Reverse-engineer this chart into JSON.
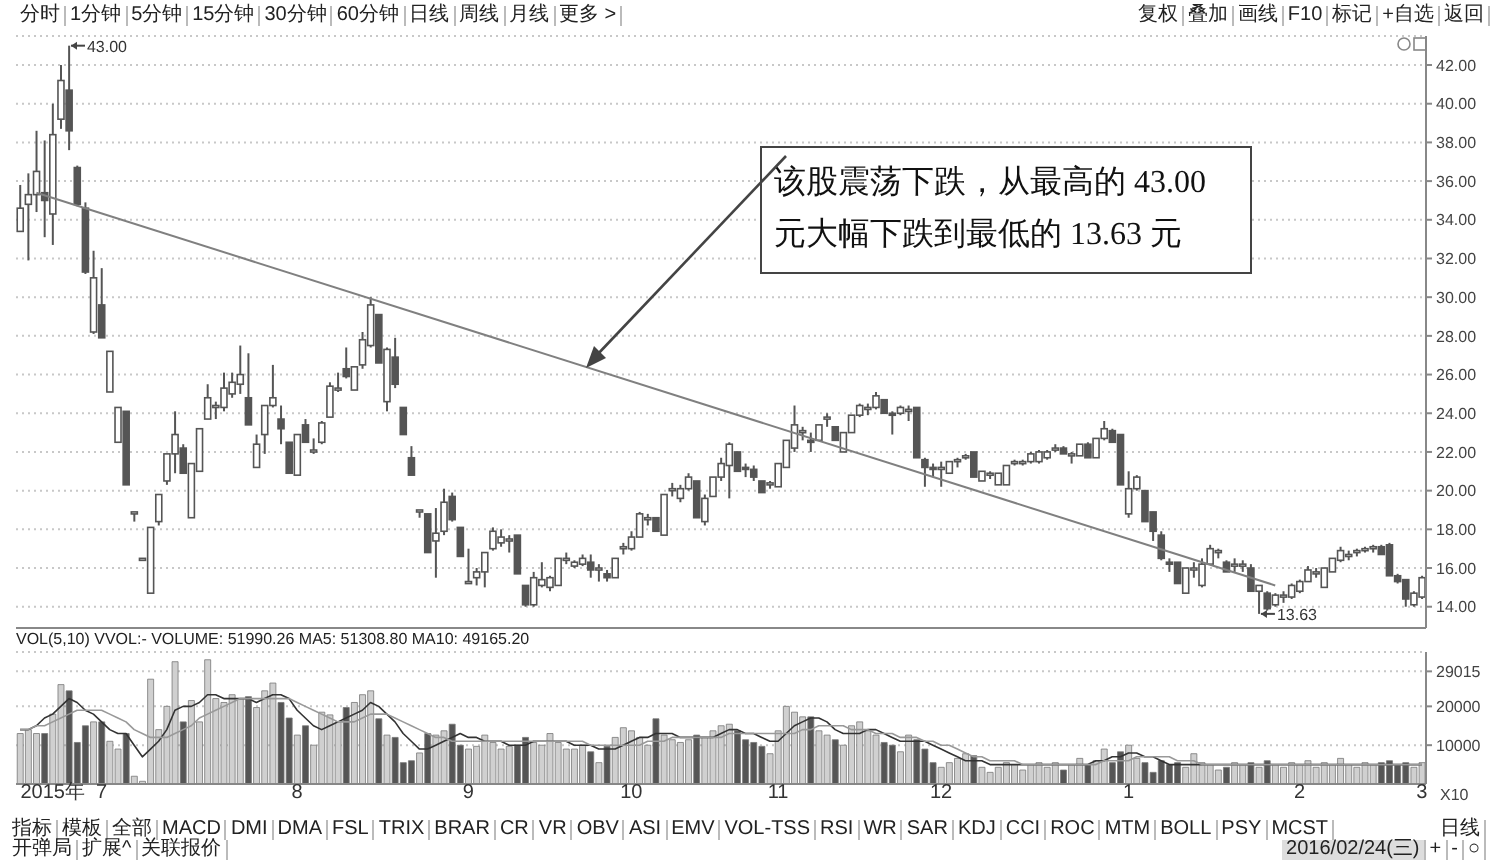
{
  "chart_data": [
    {
      "type": "other",
      "annotations": [
        "分时",
        "1分钟",
        "5分钟",
        "15分钟",
        "30分钟",
        "60分钟",
        "日线",
        "周线",
        "月线",
        "更多 >"
      ]
    },
    {
      "type": "other",
      "annotations": [
        "复权",
        "叠加",
        "画线",
        "F10",
        "标记",
        "+自选",
        "返回"
      ]
    },
    {
      "type": "candlestick",
      "color": "#555555",
      "ohlc": [
        [
          33.4,
          35.8,
          33.4,
          34.6
        ],
        [
          34.8,
          36.4,
          31.9,
          35.3
        ],
        [
          35.3,
          38.6,
          34.4,
          36.5
        ],
        [
          35.4,
          38.1,
          33.1,
          35.0
        ],
        [
          34.3,
          40.0,
          32.7,
          38.4
        ],
        [
          39.2,
          42.0,
          38.7,
          41.2
        ],
        [
          40.7,
          43.0,
          37.6,
          38.6
        ],
        [
          36.7,
          36.8,
          34.7,
          34.8
        ],
        [
          34.6,
          34.9,
          31.2,
          31.3
        ],
        [
          28.2,
          32.4,
          28.1,
          31.0
        ],
        [
          29.6,
          31.5,
          27.9,
          27.9
        ],
        [
          25.1,
          27.2,
          25.1,
          27.2
        ],
        [
          22.5,
          24.3,
          22.5,
          24.3
        ],
        [
          24.1,
          24.1,
          20.3,
          20.3
        ],
        [
          18.9,
          18.9,
          18.4,
          18.9
        ],
        [
          16.5,
          16.5,
          16.5,
          16.5
        ],
        [
          14.7,
          18.1,
          14.7,
          18.1
        ],
        [
          18.4,
          19.8,
          18.2,
          19.8
        ],
        [
          20.5,
          21.9,
          20.3,
          21.9
        ],
        [
          21.9,
          24.1,
          20.9,
          22.9
        ],
        [
          22.2,
          22.4,
          20.9,
          20.9
        ],
        [
          18.6,
          21.4,
          18.6,
          21.4
        ],
        [
          21.0,
          23.2,
          21.0,
          23.2
        ],
        [
          23.7,
          25.5,
          23.7,
          24.8
        ],
        [
          24.3,
          24.6,
          23.7,
          24.4
        ],
        [
          24.3,
          26.1,
          24.1,
          25.3
        ],
        [
          25.0,
          26.1,
          24.8,
          25.6
        ],
        [
          25.5,
          27.5,
          25.0,
          26.0
        ],
        [
          24.8,
          27.1,
          23.4,
          23.4
        ],
        [
          21.2,
          22.9,
          21.2,
          22.4
        ],
        [
          22.9,
          24.4,
          21.9,
          24.4
        ],
        [
          24.4,
          26.5,
          24.3,
          24.8
        ],
        [
          23.7,
          24.4,
          22.4,
          23.2
        ],
        [
          22.5,
          22.5,
          20.9,
          20.9
        ],
        [
          20.8,
          22.9,
          20.8,
          22.9
        ],
        [
          23.4,
          23.7,
          22.5,
          22.5
        ],
        [
          22.0,
          22.7,
          21.9,
          22.1
        ],
        [
          22.5,
          23.6,
          22.4,
          23.5
        ],
        [
          23.8,
          25.6,
          23.8,
          25.4
        ],
        [
          25.2,
          26.1,
          25.1,
          25.3
        ],
        [
          26.3,
          27.4,
          25.8,
          25.9
        ],
        [
          25.2,
          26.4,
          25.2,
          26.4
        ],
        [
          26.5,
          28.2,
          26.3,
          27.8
        ],
        [
          27.5,
          30.0,
          27.4,
          29.6
        ],
        [
          29.1,
          29.1,
          26.6,
          26.6
        ],
        [
          24.6,
          27.4,
          24.1,
          27.3
        ],
        [
          26.9,
          27.9,
          25.3,
          25.5
        ],
        [
          24.3,
          24.3,
          22.9,
          22.9
        ],
        [
          21.7,
          22.3,
          20.8,
          20.8
        ],
        [
          19.0,
          19.0,
          18.6,
          19.0
        ],
        [
          18.8,
          18.8,
          16.8,
          16.8
        ],
        [
          17.4,
          19.1,
          15.5,
          17.8
        ],
        [
          17.9,
          20.1,
          17.7,
          19.4
        ],
        [
          19.7,
          19.9,
          18.4,
          18.5
        ],
        [
          18.1,
          18.1,
          16.6,
          16.6
        ],
        [
          15.3,
          17.0,
          15.2,
          15.3
        ],
        [
          15.5,
          16.0,
          15.1,
          15.8
        ],
        [
          15.8,
          16.8,
          15.0,
          16.8
        ],
        [
          17.0,
          18.1,
          16.9,
          17.9
        ],
        [
          17.3,
          18.0,
          17.1,
          17.6
        ],
        [
          17.4,
          17.7,
          16.8,
          17.5
        ],
        [
          17.7,
          17.7,
          15.7,
          15.7
        ],
        [
          15.1,
          15.1,
          14.0,
          14.1
        ],
        [
          14.1,
          15.8,
          14.0,
          15.5
        ],
        [
          15.1,
          16.3,
          15.0,
          15.4
        ],
        [
          15.0,
          15.6,
          14.8,
          15.5
        ],
        [
          15.1,
          16.5,
          15.1,
          16.5
        ],
        [
          16.4,
          16.8,
          16.2,
          16.5
        ],
        [
          16.1,
          16.4,
          16.0,
          16.3
        ],
        [
          16.2,
          16.7,
          16.1,
          16.5
        ],
        [
          16.3,
          16.7,
          15.5,
          15.9
        ],
        [
          15.9,
          16.2,
          15.3,
          16.0
        ],
        [
          15.7,
          15.9,
          15.3,
          15.5
        ],
        [
          15.5,
          16.5,
          15.5,
          16.5
        ],
        [
          17.0,
          17.3,
          16.7,
          17.1
        ],
        [
          17.0,
          17.9,
          16.9,
          17.6
        ],
        [
          17.6,
          18.9,
          17.6,
          18.8
        ],
        [
          18.5,
          18.8,
          18.2,
          18.6
        ],
        [
          18.6,
          18.6,
          17.9,
          17.9
        ],
        [
          17.7,
          19.8,
          17.7,
          19.8
        ],
        [
          20.0,
          20.4,
          19.7,
          20.1
        ],
        [
          19.6,
          20.3,
          19.4,
          20.1
        ],
        [
          20.1,
          20.9,
          20.0,
          20.7
        ],
        [
          20.5,
          20.5,
          18.6,
          18.6
        ],
        [
          18.4,
          19.8,
          18.2,
          19.6
        ],
        [
          19.7,
          20.7,
          19.7,
          20.7
        ],
        [
          20.7,
          21.7,
          20.5,
          21.4
        ],
        [
          21.3,
          22.5,
          19.6,
          22.4
        ],
        [
          22.0,
          22.0,
          21.0,
          21.0
        ],
        [
          21.2,
          21.4,
          20.7,
          21.1
        ],
        [
          21.1,
          21.3,
          20.5,
          20.7
        ],
        [
          20.5,
          20.5,
          19.9,
          19.9
        ],
        [
          20.3,
          20.5,
          20.1,
          20.4
        ],
        [
          20.2,
          21.4,
          20.2,
          21.4
        ],
        [
          21.2,
          22.6,
          21.2,
          22.6
        ],
        [
          22.2,
          24.4,
          22.0,
          23.4
        ],
        [
          23.0,
          23.3,
          22.6,
          23.1
        ],
        [
          22.6,
          23.0,
          22.0,
          22.5
        ],
        [
          22.6,
          23.4,
          22.6,
          23.4
        ],
        [
          23.7,
          24.0,
          23.3,
          23.8
        ],
        [
          23.3,
          23.3,
          22.6,
          22.6
        ],
        [
          22.0,
          23.0,
          22.0,
          23.0
        ],
        [
          23.0,
          23.9,
          23.0,
          23.9
        ],
        [
          23.9,
          24.5,
          23.8,
          24.4
        ],
        [
          24.2,
          24.5,
          23.9,
          24.3
        ],
        [
          24.3,
          25.1,
          24.2,
          24.9
        ],
        [
          24.7,
          24.7,
          24.0,
          24.0
        ],
        [
          24.0,
          24.1,
          22.9,
          23.9
        ],
        [
          24.0,
          24.4,
          23.9,
          24.3
        ],
        [
          24.1,
          24.4,
          23.6,
          24.2
        ],
        [
          24.3,
          24.3,
          21.7,
          21.7
        ],
        [
          21.6,
          21.7,
          20.2,
          21.2
        ],
        [
          21.2,
          21.4,
          20.7,
          21.1
        ],
        [
          21.1,
          21.5,
          20.2,
          21.2
        ],
        [
          20.9,
          21.5,
          20.9,
          21.5
        ],
        [
          21.5,
          21.7,
          21.2,
          21.6
        ],
        [
          21.7,
          21.9,
          21.6,
          21.8
        ],
        [
          22.0,
          22.0,
          20.7,
          20.7
        ],
        [
          20.5,
          21.0,
          20.5,
          21.0
        ],
        [
          20.8,
          21.0,
          20.6,
          20.9
        ],
        [
          20.3,
          20.9,
          20.3,
          20.9
        ],
        [
          20.3,
          21.3,
          20.3,
          21.3
        ],
        [
          21.4,
          21.6,
          21.3,
          21.5
        ],
        [
          21.4,
          21.6,
          21.3,
          21.5
        ],
        [
          21.5,
          22.0,
          21.4,
          21.9
        ],
        [
          21.5,
          22.1,
          21.4,
          22.0
        ],
        [
          21.7,
          22.1,
          21.6,
          22.0
        ],
        [
          22.1,
          22.4,
          22.0,
          22.2
        ],
        [
          22.2,
          22.3,
          21.9,
          21.9
        ],
        [
          21.8,
          22.0,
          21.4,
          21.9
        ],
        [
          21.8,
          22.4,
          21.8,
          22.4
        ],
        [
          22.4,
          22.5,
          21.7,
          21.7
        ],
        [
          21.7,
          22.7,
          21.7,
          22.7
        ],
        [
          22.7,
          23.6,
          22.6,
          23.2
        ],
        [
          23.1,
          23.2,
          22.5,
          22.5
        ],
        [
          22.9,
          22.9,
          20.3,
          20.3
        ],
        [
          18.8,
          21.0,
          18.6,
          20.1
        ],
        [
          20.1,
          20.8,
          20.0,
          20.7
        ],
        [
          20.0,
          20.0,
          18.4,
          18.4
        ],
        [
          18.9,
          18.9,
          17.4,
          17.9
        ],
        [
          17.7,
          17.9,
          16.4,
          16.5
        ],
        [
          16.3,
          16.5,
          15.8,
          16.2
        ],
        [
          16.3,
          16.3,
          15.2,
          15.2
        ],
        [
          14.7,
          16.0,
          14.7,
          16.0
        ],
        [
          15.9,
          16.3,
          15.5,
          16.0
        ],
        [
          15.1,
          16.5,
          15.0,
          16.2
        ],
        [
          16.2,
          17.2,
          16.2,
          17.0
        ],
        [
          16.8,
          17.0,
          16.5,
          16.9
        ],
        [
          16.3,
          16.4,
          15.8,
          15.8
        ],
        [
          16.1,
          16.5,
          15.8,
          16.2
        ],
        [
          16.1,
          16.4,
          15.8,
          16.2
        ],
        [
          16.0,
          16.2,
          14.8,
          14.8
        ],
        [
          14.8,
          15.1,
          13.63,
          15.1
        ],
        [
          14.7,
          14.8,
          13.8,
          13.9
        ],
        [
          14.1,
          14.7,
          14.0,
          14.6
        ],
        [
          14.5,
          14.8,
          14.2,
          14.6
        ],
        [
          14.5,
          15.2,
          14.4,
          15.1
        ],
        [
          14.8,
          15.4,
          14.7,
          15.3
        ],
        [
          15.3,
          16.1,
          15.3,
          15.9
        ],
        [
          15.7,
          16.0,
          15.5,
          15.8
        ],
        [
          15.0,
          16.0,
          15.0,
          16.0
        ],
        [
          15.8,
          16.5,
          15.8,
          16.5
        ],
        [
          16.4,
          17.1,
          16.3,
          16.9
        ],
        [
          16.6,
          16.9,
          16.4,
          16.7
        ],
        [
          16.8,
          17.0,
          16.6,
          16.9
        ],
        [
          16.9,
          17.1,
          16.8,
          17.0
        ],
        [
          17.0,
          17.2,
          16.8,
          17.1
        ],
        [
          17.1,
          17.2,
          16.7,
          16.7
        ],
        [
          17.2,
          17.3,
          15.6,
          15.6
        ],
        [
          15.6,
          15.7,
          15.2,
          15.3
        ],
        [
          15.4,
          15.4,
          14.0,
          14.4
        ],
        [
          14.1,
          14.8,
          14.0,
          14.7
        ],
        [
          14.5,
          15.6,
          14.4,
          15.5
        ]
      ],
      "colors": [
        "#ffffff",
        "#ffffff",
        "#ffffff",
        "#555555",
        "#ffffff",
        "#ffffff",
        "#555555",
        "#555555",
        "#555555",
        "#ffffff",
        "#555555",
        "#ffffff",
        "#ffffff",
        "#555555",
        "#ffffff",
        "#ffffff",
        "#ffffff",
        "#ffffff",
        "#ffffff",
        "#ffffff",
        "#555555",
        "#ffffff",
        "#ffffff",
        "#ffffff",
        "#ffffff",
        "#ffffff",
        "#ffffff",
        "#ffffff",
        "#555555",
        "#ffffff",
        "#ffffff",
        "#ffffff",
        "#555555",
        "#555555",
        "#ffffff",
        "#555555",
        "#ffffff",
        "#ffffff",
        "#ffffff",
        "#ffffff",
        "#555555",
        "#ffffff",
        "#ffffff",
        "#ffffff",
        "#555555",
        "#ffffff",
        "#555555",
        "#555555",
        "#555555",
        "#ffffff",
        "#555555",
        "#ffffff",
        "#ffffff",
        "#555555",
        "#555555",
        "#ffffff",
        "#ffffff",
        "#ffffff",
        "#ffffff",
        "#ffffff",
        "#ffffff",
        "#555555",
        "#555555",
        "#ffffff",
        "#ffffff",
        "#ffffff",
        "#ffffff",
        "#ffffff",
        "#ffffff",
        "#ffffff",
        "#555555",
        "#ffffff",
        "#555555",
        "#ffffff",
        "#ffffff",
        "#ffffff",
        "#ffffff",
        "#ffffff",
        "#555555",
        "#ffffff",
        "#ffffff",
        "#ffffff",
        "#ffffff",
        "#555555",
        "#ffffff",
        "#ffffff",
        "#ffffff",
        "#ffffff",
        "#555555",
        "#555555",
        "#555555",
        "#555555",
        "#ffffff",
        "#ffffff",
        "#ffffff",
        "#ffffff",
        "#ffffff",
        "#555555",
        "#ffffff",
        "#ffffff",
        "#555555",
        "#ffffff",
        "#ffffff",
        "#ffffff",
        "#ffffff",
        "#ffffff",
        "#555555",
        "#555555",
        "#ffffff",
        "#ffffff",
        "#555555",
        "#555555",
        "#555555",
        "#ffffff",
        "#ffffff",
        "#ffffff",
        "#ffffff",
        "#555555",
        "#ffffff",
        "#ffffff",
        "#ffffff",
        "#ffffff",
        "#ffffff",
        "#ffffff",
        "#ffffff",
        "#ffffff",
        "#ffffff",
        "#ffffff",
        "#555555",
        "#ffffff",
        "#ffffff",
        "#555555",
        "#ffffff",
        "#ffffff",
        "#555555",
        "#555555",
        "#ffffff",
        "#ffffff",
        "#555555",
        "#555555",
        "#555555",
        "#555555",
        "#555555",
        "#ffffff",
        "#ffffff",
        "#ffffff",
        "#ffffff",
        "#ffffff",
        "#555555",
        "#ffffff",
        "#ffffff",
        "#555555",
        "#ffffff",
        "#555555",
        "#ffffff",
        "#ffffff",
        "#ffffff",
        "#ffffff",
        "#ffffff",
        "#ffffff",
        "#ffffff",
        "#ffffff",
        "#ffffff",
        "#ffffff",
        "#ffffff",
        "#ffffff",
        "#ffffff",
        "#555555",
        "#555555",
        "#555555",
        "#555555",
        "#ffffff",
        "#ffffff"
      ],
      "series": [
        {
          "type": "line",
          "color": "#808080",
          "values": [
            null,
            null,
            35.4,
            null,
            null,
            null,
            null,
            null,
            null,
            null,
            null,
            null,
            null,
            null,
            null,
            null,
            null,
            null,
            null,
            null,
            null,
            null,
            null,
            null,
            null,
            null,
            null,
            null,
            null,
            null,
            null,
            null,
            null,
            null,
            null,
            null,
            null,
            null,
            null,
            null,
            null,
            null,
            null,
            null,
            null,
            null,
            null,
            null,
            null,
            null,
            null,
            null,
            null,
            null,
            null,
            null,
            null,
            null,
            null,
            null,
            null,
            null,
            null,
            null,
            null,
            null,
            null,
            null,
            null,
            null,
            null,
            null,
            null,
            null,
            null,
            null,
            null,
            null,
            null,
            null,
            null,
            null,
            null,
            null,
            null,
            null,
            null,
            null,
            null,
            null,
            null,
            null,
            null,
            null,
            null,
            null,
            null,
            null,
            null,
            null,
            null,
            null,
            null,
            null,
            null,
            null,
            null,
            null,
            null,
            null,
            null,
            null,
            null,
            null,
            null,
            null,
            null,
            null,
            null,
            null,
            null,
            null,
            null,
            null,
            null,
            null,
            null,
            null,
            null,
            null,
            null,
            null,
            null,
            null,
            null,
            null,
            null,
            null,
            null,
            null,
            null,
            null,
            null,
            null,
            null,
            null,
            null,
            null,
            null,
            null,
            null,
            null,
            null,
            null,
            15.1,
            null,
            null,
            null,
            null,
            null,
            null,
            null,
            null,
            null,
            null,
            null,
            null,
            null,
            null,
            null,
            null,
            null,
            null
          ]
        }
      ],
      "ylim": [
        12.9,
        43.5
      ],
      "yticks": [
        {
          "value": 14,
          "label": "14.00"
        },
        {
          "value": 16,
          "label": "16.00"
        },
        {
          "value": 18,
          "label": "18.00"
        },
        {
          "value": 20,
          "label": "20.00"
        },
        {
          "value": 22,
          "label": "22.00"
        },
        {
          "value": 24,
          "label": "24.00"
        },
        {
          "value": 26,
          "label": "26.00"
        },
        {
          "value": 28,
          "label": "28.00"
        },
        {
          "value": 30,
          "label": "30.00"
        },
        {
          "value": 32,
          "label": "32.00"
        },
        {
          "value": 34,
          "label": "34.00"
        },
        {
          "value": 36,
          "label": "36.00"
        },
        {
          "value": 38,
          "label": "38.00"
        },
        {
          "value": 40,
          "label": "40.00"
        },
        {
          "value": 42,
          "label": "42.00"
        }
      ],
      "grid": "y",
      "tick_labels": "y",
      "annotations": [
        "该股震荡下跌，从最高的 43.00 元大幅下跌到最低的 13.63 元",
        "43.00",
        "13.63"
      ]
    },
    {
      "type": "bar",
      "title": "VOL(5,10) VVOL:- VOLUME: 51990.26 MA5: 51308.80 MA10: 49165.20",
      "ylabel": "X10",
      "categories": [
        null,
        null,
        null,
        null,
        "2015年",
        null,
        null,
        null,
        null,
        null,
        "7",
        null,
        null,
        null,
        null,
        null,
        null,
        null,
        null,
        null,
        null,
        null,
        null,
        null,
        null,
        null,
        null,
        null,
        null,
        null,
        null,
        null,
        null,
        null,
        "8",
        null,
        null,
        null,
        null,
        null,
        null,
        null,
        null,
        null,
        null,
        null,
        null,
        null,
        null,
        null,
        null,
        null,
        null,
        null,
        null,
        "9",
        null,
        null,
        null,
        null,
        null,
        null,
        null,
        null,
        null,
        null,
        null,
        null,
        null,
        null,
        null,
        null,
        null,
        null,
        null,
        "10",
        null,
        null,
        null,
        null,
        null,
        null,
        null,
        null,
        null,
        null,
        null,
        null,
        null,
        null,
        null,
        null,
        null,
        "11",
        null,
        null,
        null,
        null,
        null,
        null,
        null,
        null,
        null,
        null,
        null,
        null,
        null,
        null,
        null,
        null,
        null,
        null,
        null,
        "12",
        null,
        null,
        null,
        null,
        null,
        null,
        null,
        null,
        null,
        null,
        null,
        null,
        null,
        null,
        null,
        null,
        null,
        null,
        null,
        null,
        null,
        null,
        "1",
        null,
        null,
        null,
        null,
        null,
        null,
        null,
        null,
        null,
        null,
        null,
        null,
        null,
        null,
        null,
        null,
        null,
        null,
        null,
        null,
        "2",
        null,
        null,
        null,
        null,
        null,
        null,
        null,
        null,
        null,
        null,
        null,
        null,
        null,
        null,
        "3"
      ],
      "values": [
        13000,
        14000,
        13000,
        13000,
        18000,
        25600,
        24000,
        10700,
        15000,
        16000,
        16000,
        11000,
        9000,
        13000,
        2000,
        700,
        27000,
        14000,
        20000,
        31500,
        16000,
        21500,
        16000,
        32000,
        22000,
        21000,
        23000,
        22000,
        22500,
        19700,
        24000,
        26000,
        21000,
        17000,
        12600,
        15000,
        10000,
        18500,
        17800,
        16000,
        19700,
        21000,
        23000,
        24000,
        16800,
        12600,
        12000,
        5500,
        6000,
        8000,
        13000,
        12600,
        13700,
        15400,
        10000,
        9000,
        9700,
        12600,
        10700,
        9000,
        9700,
        10000,
        12000,
        10700,
        10000,
        13000,
        10700,
        9000,
        9000,
        10000,
        8300,
        5500,
        9700,
        12000,
        14500,
        13700,
        12000,
        10000,
        16800,
        12600,
        11400,
        10700,
        11400,
        12600,
        12000,
        13700,
        15000,
        15400,
        13700,
        11400,
        10700,
        9700,
        7800,
        13700,
        20000,
        18500,
        17300,
        17300,
        13700,
        12600,
        11400,
        10000,
        15000,
        16000,
        13700,
        12600,
        10700,
        10000,
        8300,
        12600,
        11400,
        9000,
        5500,
        4300,
        5500,
        6600,
        7800,
        7300,
        4300,
        3000,
        4300,
        5500,
        5000,
        3600,
        5000,
        5500,
        4300,
        5500,
        3600,
        5000,
        6600,
        5000,
        6000,
        9000,
        5500,
        8300,
        10000,
        6600,
        5500,
        3000,
        6000,
        5000,
        5500,
        4300,
        7800,
        5500,
        5000,
        3600,
        4300,
        5500,
        5000,
        5500,
        4300,
        6000,
        5000,
        4300,
        5500,
        5000,
        6000,
        4300,
        5500,
        5000,
        6600,
        5000,
        4300,
        5500,
        5000,
        5500,
        6000,
        5000,
        5500,
        4300,
        5500
      ],
      "colors": [
        "#d0d0d0",
        "#d0d0d0",
        "#d0d0d0",
        "#555555",
        "#d0d0d0",
        "#d0d0d0",
        "#555555",
        "#555555",
        "#555555",
        "#d0d0d0",
        "#555555",
        "#d0d0d0",
        "#d0d0d0",
        "#555555",
        "#d0d0d0",
        "#d0d0d0",
        "#d0d0d0",
        "#d0d0d0",
        "#d0d0d0",
        "#d0d0d0",
        "#555555",
        "#d0d0d0",
        "#d0d0d0",
        "#d0d0d0",
        "#d0d0d0",
        "#d0d0d0",
        "#d0d0d0",
        "#d0d0d0",
        "#555555",
        "#d0d0d0",
        "#d0d0d0",
        "#d0d0d0",
        "#555555",
        "#555555",
        "#d0d0d0",
        "#555555",
        "#d0d0d0",
        "#d0d0d0",
        "#d0d0d0",
        "#d0d0d0",
        "#555555",
        "#d0d0d0",
        "#d0d0d0",
        "#d0d0d0",
        "#555555",
        "#d0d0d0",
        "#555555",
        "#555555",
        "#555555",
        "#d0d0d0",
        "#555555",
        "#d0d0d0",
        "#d0d0d0",
        "#555555",
        "#555555",
        "#d0d0d0",
        "#d0d0d0",
        "#d0d0d0",
        "#d0d0d0",
        "#d0d0d0",
        "#d0d0d0",
        "#555555",
        "#555555",
        "#d0d0d0",
        "#d0d0d0",
        "#d0d0d0",
        "#d0d0d0",
        "#d0d0d0",
        "#d0d0d0",
        "#d0d0d0",
        "#555555",
        "#d0d0d0",
        "#555555",
        "#d0d0d0",
        "#d0d0d0",
        "#d0d0d0",
        "#d0d0d0",
        "#d0d0d0",
        "#555555",
        "#d0d0d0",
        "#d0d0d0",
        "#d0d0d0",
        "#d0d0d0",
        "#555555",
        "#d0d0d0",
        "#d0d0d0",
        "#d0d0d0",
        "#d0d0d0",
        "#555555",
        "#555555",
        "#555555",
        "#555555",
        "#d0d0d0",
        "#d0d0d0",
        "#d0d0d0",
        "#d0d0d0",
        "#d0d0d0",
        "#555555",
        "#d0d0d0",
        "#d0d0d0",
        "#555555",
        "#d0d0d0",
        "#d0d0d0",
        "#d0d0d0",
        "#d0d0d0",
        "#d0d0d0",
        "#555555",
        "#555555",
        "#d0d0d0",
        "#d0d0d0",
        "#555555",
        "#555555",
        "#555555",
        "#d0d0d0",
        "#d0d0d0",
        "#d0d0d0",
        "#d0d0d0",
        "#555555",
        "#d0d0d0",
        "#d0d0d0",
        "#d0d0d0",
        "#d0d0d0",
        "#d0d0d0",
        "#d0d0d0",
        "#d0d0d0",
        "#d0d0d0",
        "#d0d0d0",
        "#d0d0d0",
        "#555555",
        "#d0d0d0",
        "#d0d0d0",
        "#555555",
        "#d0d0d0",
        "#d0d0d0",
        "#555555",
        "#555555",
        "#d0d0d0",
        "#d0d0d0",
        "#555555",
        "#555555",
        "#555555",
        "#555555",
        "#555555",
        "#d0d0d0",
        "#d0d0d0",
        "#d0d0d0",
        "#d0d0d0",
        "#d0d0d0",
        "#555555",
        "#d0d0d0",
        "#d0d0d0",
        "#555555",
        "#d0d0d0",
        "#555555",
        "#d0d0d0",
        "#d0d0d0",
        "#d0d0d0",
        "#d0d0d0",
        "#d0d0d0",
        "#d0d0d0",
        "#d0d0d0",
        "#d0d0d0",
        "#d0d0d0",
        "#d0d0d0",
        "#d0d0d0",
        "#d0d0d0",
        "#d0d0d0",
        "#555555",
        "#555555",
        "#555555",
        "#555555",
        "#d0d0d0",
        "#d0d0d0"
      ],
      "series": [
        {
          "type": "line",
          "color": "#333333",
          "values": [
            14000,
            14000,
            15000,
            17000,
            18000,
            20000,
            22000,
            21000,
            19000,
            18000,
            16000,
            14000,
            13000,
            13000,
            10000,
            7000,
            9000,
            11000,
            14000,
            19000,
            20000,
            20000,
            21000,
            23000,
            23000,
            22000,
            22000,
            22000,
            22000,
            21000,
            22000,
            23000,
            23000,
            22000,
            19000,
            17000,
            15000,
            14000,
            15000,
            16000,
            17000,
            18000,
            19000,
            21000,
            20000,
            18000,
            16000,
            13000,
            11000,
            9000,
            9000,
            10000,
            11000,
            12000,
            13000,
            12000,
            12000,
            11000,
            11000,
            11000,
            10000,
            10000,
            10000,
            11000,
            11000,
            11000,
            11000,
            11000,
            10000,
            10000,
            10000,
            9000,
            9000,
            9000,
            10000,
            11000,
            12000,
            12000,
            13000,
            13000,
            13000,
            12000,
            12000,
            12000,
            12000,
            12000,
            13000,
            14000,
            14000,
            13000,
            13000,
            12000,
            11000,
            11000,
            13000,
            15000,
            16000,
            17000,
            17000,
            16000,
            14000,
            13000,
            13000,
            13000,
            14000,
            14000,
            13000,
            12000,
            11000,
            11000,
            11000,
            11000,
            10000,
            9000,
            8000,
            7000,
            6000,
            6000,
            6000,
            5000,
            5000,
            5000,
            5000,
            5000,
            5000,
            5000,
            5000,
            5000,
            5000,
            5000,
            5000,
            5000,
            6000,
            6000,
            7000,
            7000,
            8000,
            8000,
            7000,
            7000,
            6000,
            5000,
            5000,
            5000,
            5000,
            5000,
            5000,
            5000,
            5000,
            5000,
            5000,
            5000,
            5000,
            5000,
            5000,
            5000,
            5000,
            5000,
            5000,
            5000,
            5000,
            5000,
            5000,
            5000,
            5000,
            5000,
            5000,
            5000,
            5000,
            5000,
            5000,
            5000,
            5000
          ]
        },
        {
          "type": "line",
          "color": "#999999",
          "values": [
            14000,
            14000,
            15000,
            15000,
            16000,
            17000,
            18000,
            19000,
            19000,
            19000,
            19000,
            18000,
            17000,
            16000,
            14000,
            13000,
            12000,
            12000,
            12000,
            13000,
            14000,
            15000,
            17000,
            18000,
            19000,
            20000,
            21000,
            22000,
            22000,
            22000,
            22000,
            22000,
            22000,
            22000,
            21000,
            20000,
            19000,
            18000,
            17000,
            16000,
            16000,
            16000,
            17000,
            18000,
            18000,
            18000,
            17000,
            16000,
            15000,
            14000,
            13000,
            12000,
            12000,
            11000,
            11000,
            11000,
            11000,
            11000,
            11000,
            11000,
            11000,
            11000,
            11000,
            11000,
            11000,
            11000,
            11000,
            11000,
            11000,
            11000,
            10000,
            10000,
            10000,
            10000,
            10000,
            10000,
            10000,
            11000,
            11000,
            11000,
            12000,
            12000,
            12000,
            12000,
            12000,
            12000,
            12000,
            13000,
            13000,
            13000,
            13000,
            13000,
            13000,
            13000,
            13000,
            13000,
            14000,
            14000,
            15000,
            15000,
            15000,
            15000,
            14000,
            14000,
            14000,
            13000,
            13000,
            13000,
            12000,
            12000,
            12000,
            11000,
            11000,
            10000,
            10000,
            9000,
            8000,
            7000,
            7000,
            6000,
            6000,
            6000,
            6000,
            5000,
            5000,
            5000,
            5000,
            5000,
            5000,
            5000,
            5000,
            5000,
            5000,
            6000,
            6000,
            6000,
            6000,
            7000,
            7000,
            7000,
            7000,
            7000,
            6000,
            6000,
            6000,
            5000,
            5000,
            5000,
            5000,
            5000,
            5000,
            5000,
            5000,
            5000,
            5000,
            5000,
            5000,
            5000,
            5000,
            5000,
            5000,
            5000,
            5000,
            5000,
            5000,
            5000,
            5000,
            5000,
            5000,
            5000,
            5000,
            5000,
            5000
          ]
        }
      ],
      "ylim": [
        0,
        34000
      ],
      "yticks": [
        10000,
        20000,
        29015
      ],
      "grid": "y"
    },
    {
      "type": "other",
      "annotations": [
        "指标",
        "模板",
        "全部",
        "MACD",
        "DMI",
        "DMA",
        "FSL",
        "TRIX",
        "BRAR",
        "CR",
        "VR",
        "OBV",
        "ASI",
        "EMV",
        "VOL-TSS",
        "RSI",
        "WR",
        "SAR",
        "KDJ",
        "CCI",
        "ROC",
        "MTM",
        "BOLL",
        "PSY",
        "MCST"
      ]
    },
    {
      "type": "other",
      "annotations": [
        "日线"
      ]
    },
    {
      "type": "other",
      "annotations": [
        "开弹局",
        "扩展^",
        "关联报价"
      ]
    },
    {
      "type": "other",
      "annotations": [
        "2016/02/24(三)",
        "+",
        "-",
        "○"
      ]
    }
  ]
}
